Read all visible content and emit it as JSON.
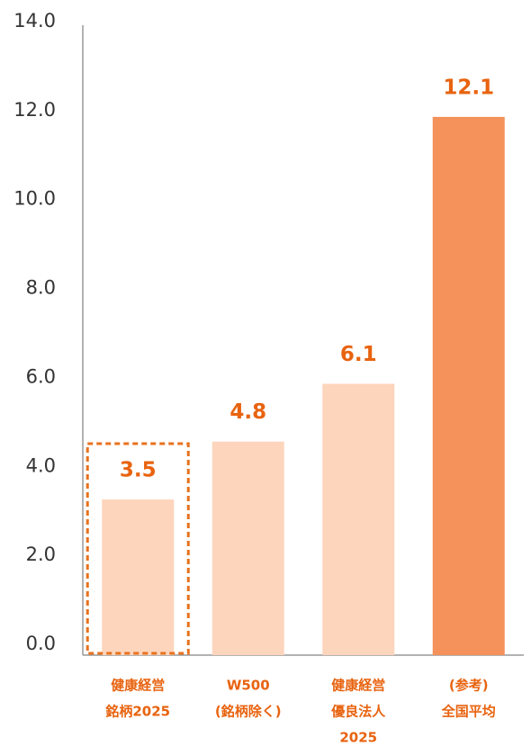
{
  "chart_data": {
    "type": "bar",
    "categories": [
      [
        "健康経営",
        "銘柄2025"
      ],
      [
        "W500",
        "(銘柄除く)"
      ],
      [
        "健康経営",
        "優良法人",
        "2025"
      ],
      [
        "(参考)",
        "全国平均"
      ]
    ],
    "values": [
      3.5,
      4.8,
      6.1,
      12.1
    ],
    "colors": [
      "#fdd5bd",
      "#fdd5bd",
      "#fdd5bd",
      "#f5915a"
    ],
    "highlight": 0,
    "ylim": [
      0,
      14
    ],
    "yticks": [
      {
        "value": 0,
        "label": "0.0"
      },
      {
        "value": 2,
        "label": "2.0"
      },
      {
        "value": 4,
        "label": "4.0"
      },
      {
        "value": 6,
        "label": "6.0"
      },
      {
        "value": 8,
        "label": "8.0"
      },
      {
        "value": 10,
        "label": "10.0"
      },
      {
        "value": 12,
        "label": "12.0"
      },
      {
        "value": 14,
        "label": "14.0"
      }
    ],
    "grid": false
  }
}
